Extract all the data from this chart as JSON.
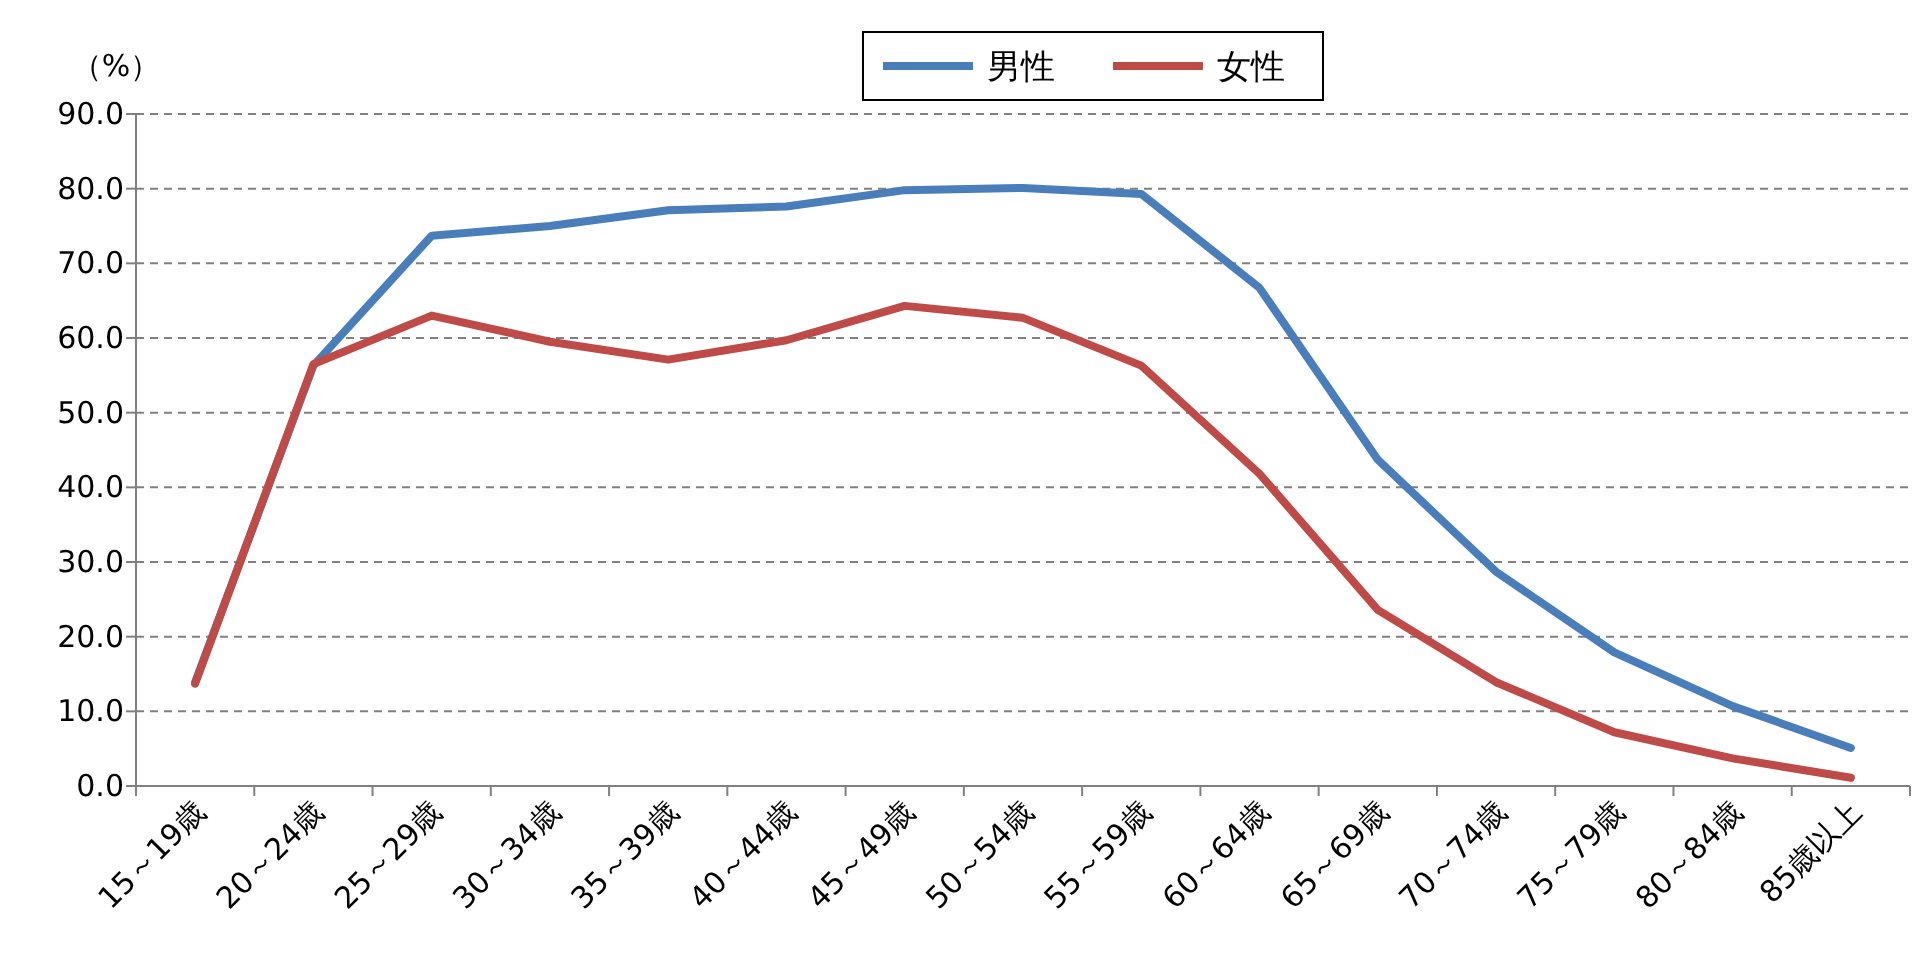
{
  "chart_data": {
    "type": "line",
    "ylabel": "（%）",
    "legend": "top",
    "categories": [
      "15～19歳",
      "20～24歳",
      "25～29歳",
      "30～34歳",
      "35～39歳",
      "40～44歳",
      "45～49歳",
      "50～54歳",
      "55～59歳",
      "60～64歳",
      "65～69歳",
      "70～74歳",
      "75～79歳",
      "80～84歳",
      "85歳以上"
    ],
    "series": [
      {
        "name": "男性",
        "color": "#4a7ebb",
        "values": [
          13.9,
          56.3,
          73.7,
          75.0,
          77.1,
          77.6,
          79.8,
          80.1,
          79.3,
          66.7,
          43.7,
          28.7,
          17.9,
          10.7,
          5.1
        ]
      },
      {
        "name": "女性",
        "color": "#be4b48",
        "values": [
          13.7,
          56.5,
          63.0,
          59.5,
          57.1,
          59.7,
          64.3,
          62.7,
          56.3,
          41.8,
          23.6,
          13.9,
          7.2,
          3.7,
          1.1
        ]
      }
    ],
    "ylim": [
      0,
      90
    ],
    "yticks": [
      {
        "value": 0,
        "label": "0.0"
      },
      {
        "value": 10,
        "label": "10.0"
      },
      {
        "value": 20,
        "label": "20.0"
      },
      {
        "value": 30,
        "label": "30.0"
      },
      {
        "value": 40,
        "label": "40.0"
      },
      {
        "value": 50,
        "label": "50.0"
      },
      {
        "value": 60,
        "label": "60.0"
      },
      {
        "value": 70,
        "label": "70.0"
      },
      {
        "value": 80,
        "label": "80.0"
      },
      {
        "value": 90,
        "label": "90.0"
      }
    ],
    "grid": "y"
  }
}
